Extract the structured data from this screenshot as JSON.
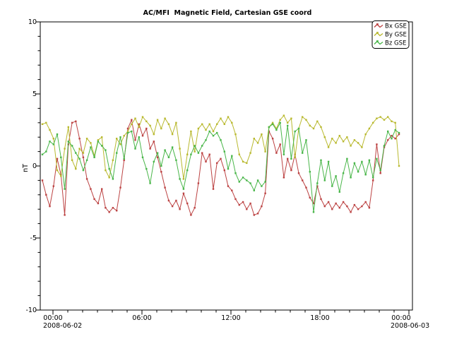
{
  "window": {
    "background": "#ffffff"
  },
  "chart_data": {
    "type": "line",
    "title": "AC/MFI  Magnetic Field, Cartesian GSE coord",
    "ylabel": "nT",
    "ylim": [
      -10,
      10
    ],
    "y_major_ticks": [
      10,
      5,
      0,
      -5,
      -10
    ],
    "y_tick_labels": [
      "10",
      "5",
      "0",
      "-5",
      "-10"
    ],
    "y_minor_step_nt": 1,
    "x_axis": {
      "range_start": "2008-06-02 00:00",
      "range_end": "2008-06-03 00:00",
      "tick_labels": [
        "00:00",
        "06:00",
        "12:00",
        "18:00",
        "00:00"
      ],
      "date_labels": [
        "2008-06-02",
        "2008-06-03"
      ],
      "major_step_hours": 6,
      "minor_step_hours": 1
    },
    "grid": false,
    "sample_interval_hours": 0.25,
    "legend": {
      "position": "top-right",
      "entries": [
        "Bx GSE",
        "By GSE",
        "Bz GSE"
      ]
    },
    "series": [
      {
        "name": "Bx GSE",
        "color": "#bc4343",
        "values": [
          -1.0,
          -2.0,
          -2.8,
          -1.4,
          0.5,
          -0.6,
          -3.4,
          1.5,
          3.0,
          3.1,
          1.9,
          0.6,
          -0.9,
          -1.6,
          -2.3,
          -2.6,
          -1.6,
          -2.9,
          -3.2,
          -2.9,
          -3.1,
          -1.5,
          0.4,
          2.6,
          3.2,
          1.8,
          2.9,
          2.1,
          2.6,
          1.2,
          1.7,
          0.6,
          -0.4,
          -1.5,
          -2.4,
          -2.8,
          -2.4,
          -3.0,
          -1.9,
          -2.6,
          -3.4,
          -2.9,
          -1.2,
          0.9,
          0.3,
          0.8,
          -1.6,
          0.2,
          0.5,
          -0.3,
          -1.4,
          -1.7,
          -2.3,
          -2.7,
          -2.5,
          -3.0,
          -2.6,
          -3.4,
          -3.3,
          -2.8,
          -1.9,
          2.4,
          1.9,
          0.9,
          1.5,
          -0.8,
          0.5,
          -0.3,
          0.8,
          -0.5,
          -1.0,
          -1.5,
          -2.2,
          -2.6,
          -1.4,
          -2.3,
          -2.8,
          -2.5,
          -3.0,
          -2.6,
          -2.9,
          -2.5,
          -2.8,
          -3.2,
          -2.7,
          -3.0,
          -2.8,
          -2.5,
          -2.9,
          -1.0,
          1.5,
          -0.5,
          1.3,
          1.8,
          2.1,
          1.9,
          2.2
        ]
      },
      {
        "name": "By GSE",
        "color": "#b9b92f",
        "values": [
          2.9,
          3.0,
          2.5,
          1.9,
          -0.3,
          -0.7,
          1.2,
          2.7,
          0.4,
          -0.2,
          1.2,
          0.9,
          1.9,
          1.6,
          0.7,
          1.8,
          2.0,
          -0.3,
          -0.8,
          0.4,
          1.9,
          1.5,
          2.1,
          2.4,
          2.9,
          3.3,
          2.7,
          3.4,
          3.1,
          2.8,
          2.2,
          3.2,
          2.6,
          3.3,
          2.9,
          2.2,
          3.0,
          1.2,
          -0.9,
          0.8,
          2.4,
          1.0,
          2.6,
          2.9,
          2.5,
          2.9,
          2.4,
          2.9,
          3.3,
          2.9,
          3.4,
          3.0,
          2.2,
          0.8,
          0.3,
          0.2,
          0.9,
          1.9,
          1.6,
          2.2,
          1.0,
          2.7,
          3.0,
          2.6,
          3.2,
          3.5,
          3.0,
          3.3,
          0.6,
          2.6,
          3.4,
          3.2,
          2.8,
          2.6,
          3.1,
          2.7,
          2.0,
          1.3,
          1.9,
          1.6,
          2.1,
          1.7,
          2.0,
          1.4,
          1.8,
          1.6,
          1.3,
          2.2,
          2.6,
          3.0,
          3.3,
          3.4,
          3.2,
          3.4,
          3.1,
          3.0,
          0.0
        ]
      },
      {
        "name": "Bz GSE",
        "color": "#49b649",
        "values": [
          0.8,
          1.0,
          1.7,
          1.5,
          2.2,
          0.6,
          -1.6,
          1.7,
          1.4,
          0.9,
          0.5,
          -0.3,
          0.4,
          1.3,
          0.6,
          1.7,
          1.4,
          1.1,
          -0.2,
          -0.9,
          0.9,
          2.0,
          0.5,
          2.3,
          2.4,
          1.2,
          2.0,
          0.6,
          -0.2,
          -1.2,
          0.3,
          0.9,
          0.0,
          1.1,
          0.6,
          1.3,
          0.4,
          -0.9,
          -1.6,
          -0.3,
          0.8,
          1.4,
          0.9,
          1.4,
          1.8,
          2.4,
          2.1,
          2.3,
          1.8,
          1.0,
          -0.2,
          0.7,
          -0.5,
          -1.1,
          -0.8,
          -1.0,
          -1.2,
          -1.7,
          -1.0,
          -1.4,
          -1.1,
          2.7,
          2.9,
          2.5,
          3.0,
          0.8,
          2.8,
          0.5,
          2.4,
          2.6,
          0.9,
          1.8,
          -0.4,
          -3.2,
          -1.2,
          0.4,
          -1.0,
          0.3,
          -1.4,
          -0.7,
          -1.8,
          -0.5,
          0.5,
          -0.8,
          0.2,
          -0.4,
          0.3,
          -0.6,
          0.4,
          -0.8,
          0.5,
          -0.3,
          1.4,
          2.4,
          1.9,
          2.5,
          2.3
        ]
      }
    ]
  }
}
